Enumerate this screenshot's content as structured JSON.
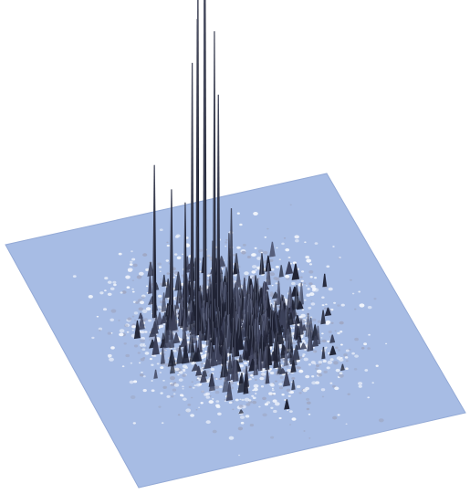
{
  "chart_data": {
    "type": "surface",
    "title": "",
    "xlabel": "",
    "ylabel": "",
    "zlabel": "",
    "axes_visible": false,
    "grid": false,
    "legend": "none",
    "grid_resolution": [
      100,
      100
    ],
    "x_range": [
      0,
      1
    ],
    "y_range": [
      0,
      1
    ],
    "z_range": [
      0,
      1
    ],
    "spike_cluster_center": [
      0.5,
      0.5
    ],
    "peaks": [
      {
        "x": 0.45,
        "y": 0.6,
        "z": 1.0
      },
      {
        "x": 0.43,
        "y": 0.6,
        "z": 0.85
      },
      {
        "x": 0.44,
        "y": 0.57,
        "z": 0.82
      },
      {
        "x": 0.42,
        "y": 0.58,
        "z": 0.74
      },
      {
        "x": 0.46,
        "y": 0.55,
        "z": 0.72
      },
      {
        "x": 0.4,
        "y": 0.57,
        "z": 0.64
      },
      {
        "x": 0.46,
        "y": 0.52,
        "z": 0.58
      },
      {
        "x": 0.3,
        "y": 0.61,
        "z": 0.38
      },
      {
        "x": 0.34,
        "y": 0.58,
        "z": 0.33
      },
      {
        "x": 0.37,
        "y": 0.55,
        "z": 0.31
      },
      {
        "x": 0.5,
        "y": 0.52,
        "z": 0.29
      },
      {
        "x": 0.39,
        "y": 0.51,
        "z": 0.27
      },
      {
        "x": 0.48,
        "y": 0.49,
        "z": 0.25
      },
      {
        "x": 0.43,
        "y": 0.49,
        "z": 0.24
      }
    ],
    "colors": {
      "background": "#ffffff",
      "plane": "#a7bce4",
      "plane_edge": "#94aad6",
      "speckle": "#f3f6fc",
      "spike_dark": "#1f2233",
      "spike_mid": "#3c4159",
      "spike_light": "#9fa8c4"
    }
  }
}
